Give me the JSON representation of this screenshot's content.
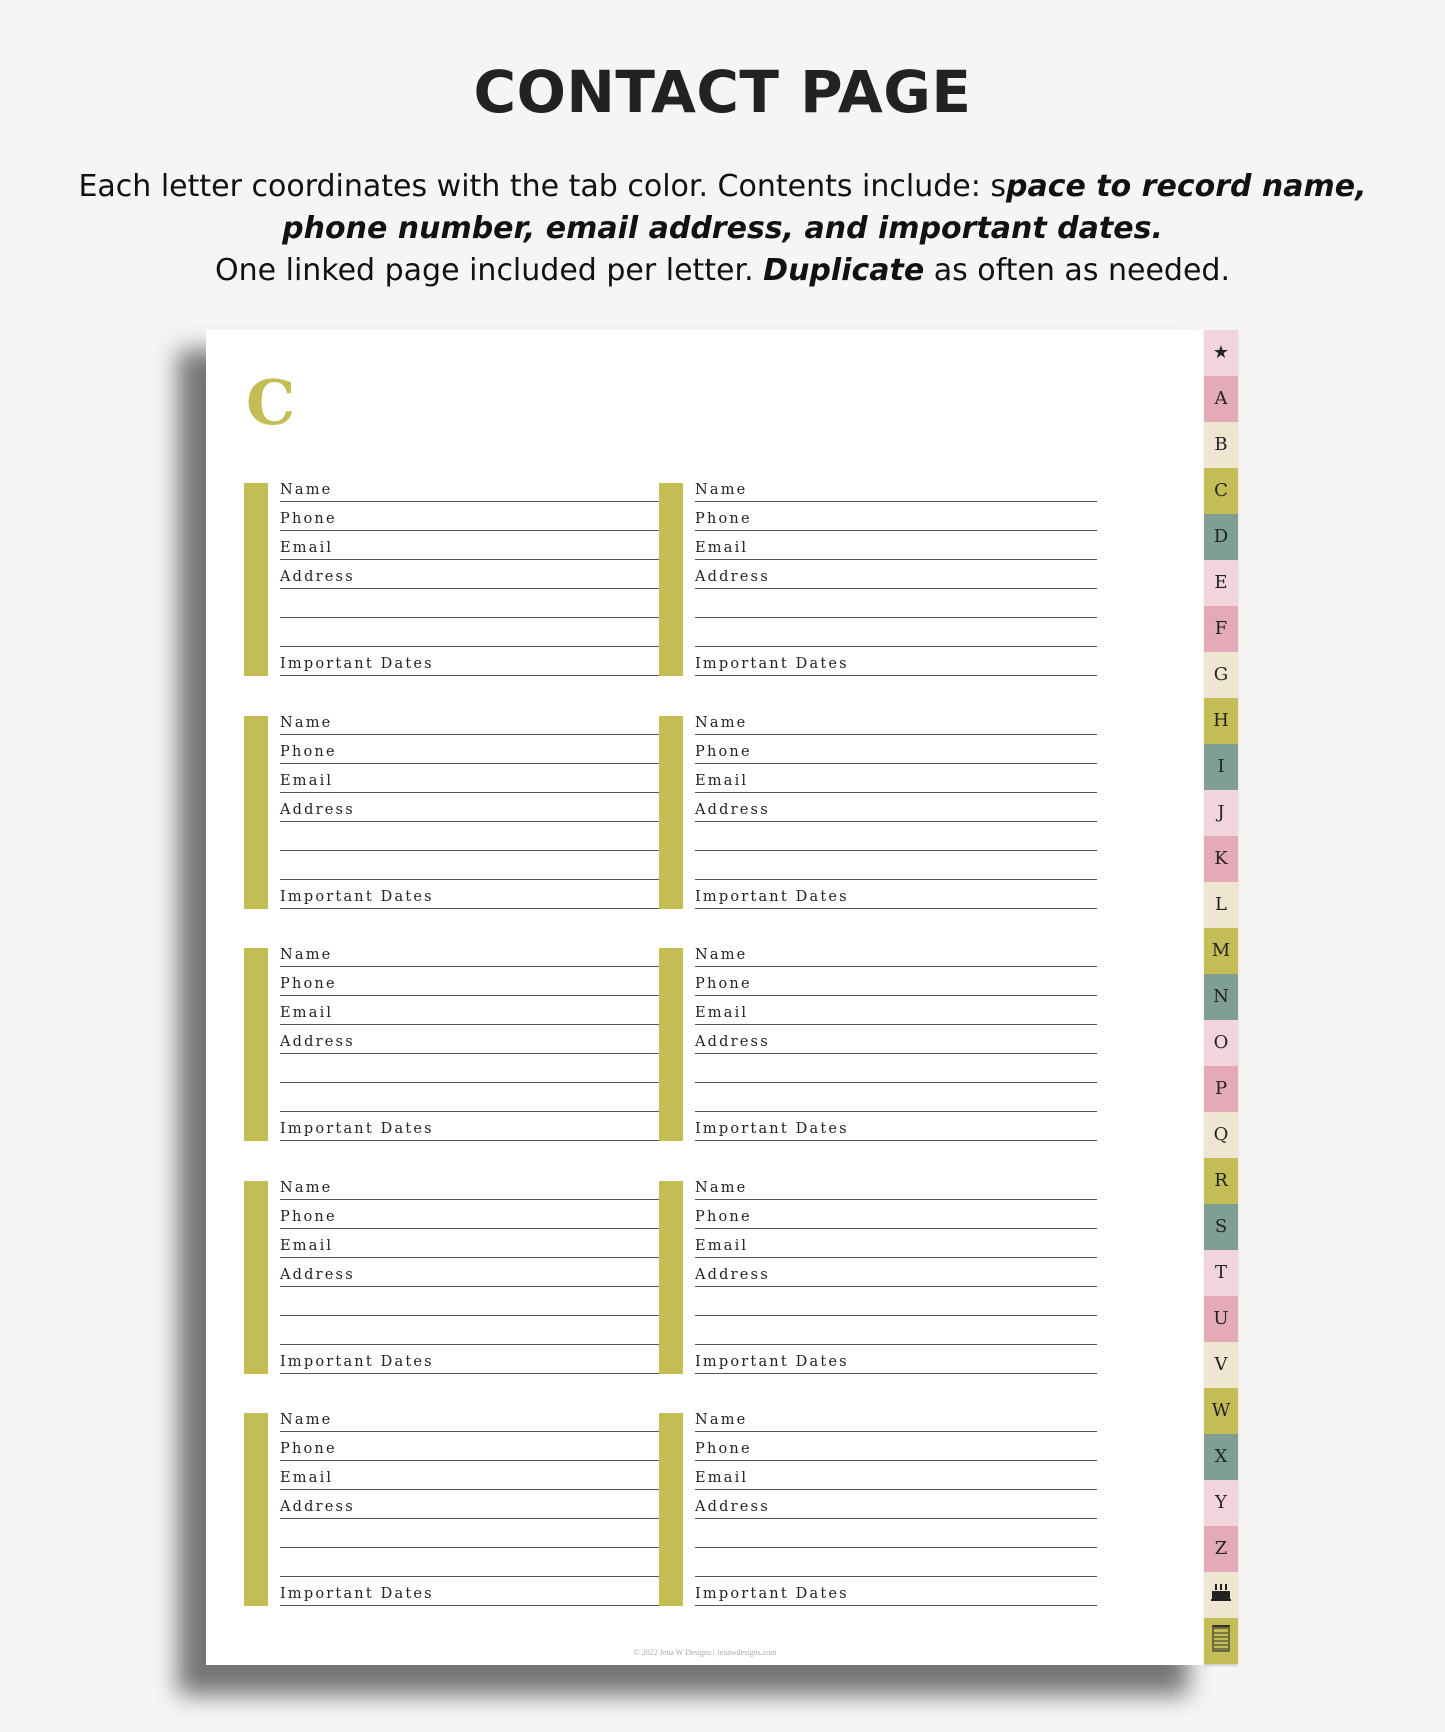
{
  "header": {
    "title": "CONTACT PAGE",
    "desc_1": "Each letter coordinates with the tab color. Contents include: s",
    "desc_1b": "pace to record name,",
    "desc_2": "phone number, email address, and important dates.",
    "desc_3a": "One linked page included per letter. ",
    "desc_3b": "Duplicate",
    "desc_3c": " as often as needed."
  },
  "page": {
    "letter": "C",
    "accent": "#c4bd55",
    "footer": "© 2022 Jena W Designs | Jenawdesigns.com",
    "fields": [
      "Name",
      "Phone",
      "Email",
      "Address",
      "",
      "",
      "Important Dates"
    ],
    "card_count": 10
  },
  "tabs": {
    "colors": [
      "#f2d5dc",
      "#e4aab8",
      "#efe6d2",
      "#c4bd55",
      "#7e9f92"
    ],
    "items": [
      {
        "icon": "star-icon",
        "label": "★"
      },
      "A",
      "B",
      "C",
      "D",
      "E",
      "F",
      "G",
      "H",
      "I",
      "J",
      "K",
      "L",
      "M",
      "N",
      "O",
      "P",
      "Q",
      "R",
      "S",
      "T",
      "U",
      "V",
      "W",
      "X",
      "Y",
      "Z",
      {
        "icon": "birthday-cake-icon"
      },
      {
        "icon": "notebook-icon"
      }
    ]
  }
}
